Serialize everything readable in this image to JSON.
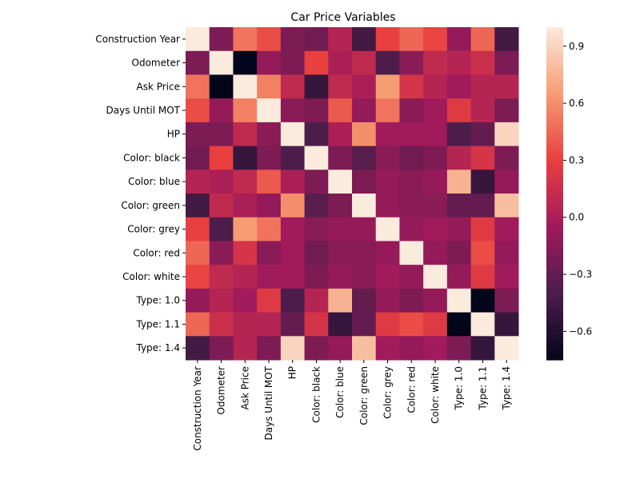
{
  "chart_data": {
    "type": "heatmap",
    "title": "Car Price Variables",
    "xlabel": "",
    "ylabel": "",
    "rows": [
      "Construction Year",
      "Odometer",
      "Ask Price",
      "Days Until MOT",
      "HP",
      "Color: black",
      "Color: blue",
      "Color: green",
      "Color: grey",
      "Color: red",
      "Color: white",
      "Type: 1.0",
      "Type: 1.1",
      "Type: 1.4"
    ],
    "columns": [
      "Construction Year",
      "Odometer",
      "Ask Price",
      "Days Until MOT",
      "HP",
      "Color: black",
      "Color: blue",
      "Color: green",
      "Color: grey",
      "Color: red",
      "Color: white",
      "Type: 1.0",
      "Type: 1.1",
      "Type: 1.4"
    ],
    "values": [
      [
        1.0,
        -0.2,
        0.5,
        0.35,
        -0.2,
        -0.25,
        0.05,
        -0.45,
        0.3,
        0.45,
        0.32,
        -0.1,
        0.45,
        -0.45
      ],
      [
        -0.2,
        1.0,
        -0.75,
        -0.1,
        -0.2,
        0.3,
        0.0,
        0.1,
        -0.4,
        -0.15,
        0.1,
        0.05,
        0.15,
        -0.2
      ],
      [
        0.5,
        -0.75,
        1.0,
        0.55,
        0.1,
        -0.5,
        0.1,
        0.0,
        0.65,
        0.2,
        0.05,
        -0.05,
        0.05,
        0.05
      ],
      [
        0.35,
        -0.1,
        0.55,
        1.0,
        -0.15,
        -0.2,
        0.4,
        -0.1,
        0.5,
        -0.15,
        -0.05,
        0.25,
        0.05,
        -0.2
      ],
      [
        -0.2,
        -0.2,
        0.1,
        -0.15,
        1.0,
        -0.4,
        0.0,
        0.6,
        -0.05,
        -0.05,
        -0.05,
        -0.4,
        -0.3,
        0.9
      ],
      [
        -0.25,
        0.3,
        -0.5,
        -0.2,
        -0.4,
        1.0,
        -0.2,
        -0.35,
        -0.15,
        -0.25,
        -0.2,
        0.05,
        0.2,
        -0.2
      ],
      [
        0.05,
        0.0,
        0.1,
        0.4,
        0.0,
        -0.2,
        1.0,
        -0.2,
        -0.1,
        -0.15,
        -0.1,
        0.75,
        -0.5,
        -0.1
      ],
      [
        -0.45,
        0.1,
        0.0,
        -0.1,
        0.6,
        -0.35,
        -0.2,
        1.0,
        -0.1,
        -0.15,
        -0.15,
        -0.3,
        -0.3,
        0.8
      ],
      [
        0.3,
        -0.4,
        0.65,
        0.5,
        -0.05,
        -0.15,
        -0.1,
        -0.1,
        1.0,
        -0.1,
        -0.05,
        -0.1,
        0.25,
        -0.05
      ],
      [
        0.45,
        -0.15,
        0.2,
        -0.15,
        -0.05,
        -0.25,
        -0.15,
        -0.15,
        -0.1,
        1.0,
        -0.1,
        -0.2,
        0.35,
        -0.1
      ],
      [
        0.32,
        0.1,
        0.05,
        -0.05,
        -0.05,
        -0.2,
        -0.1,
        -0.15,
        -0.05,
        -0.1,
        1.0,
        -0.1,
        0.25,
        -0.05
      ],
      [
        -0.1,
        0.05,
        -0.05,
        0.25,
        -0.4,
        0.05,
        0.75,
        -0.3,
        -0.1,
        -0.2,
        -0.1,
        1.0,
        -0.75,
        -0.2
      ],
      [
        0.45,
        0.15,
        0.05,
        0.05,
        -0.3,
        0.2,
        -0.5,
        -0.3,
        0.25,
        0.35,
        0.25,
        -0.75,
        1.0,
        -0.5
      ],
      [
        -0.45,
        -0.2,
        0.05,
        -0.2,
        0.9,
        -0.2,
        -0.1,
        0.8,
        -0.05,
        -0.1,
        -0.05,
        -0.2,
        -0.5,
        1.0
      ]
    ],
    "vmin": -0.75,
    "vmax": 1.0,
    "colorbar_ticks": [
      -0.6,
      -0.3,
      0.0,
      0.3,
      0.6,
      0.9
    ],
    "colorbar_tick_labels": [
      "−0.6",
      "−0.3",
      "0.0",
      "0.3",
      "0.6",
      "0.9"
    ],
    "colormap": "rocket",
    "colormap_stops": [
      "#03051a",
      "#4c1d4b",
      "#a11a5b",
      "#e83f3f",
      "#f69c73",
      "#faebdd"
    ]
  }
}
